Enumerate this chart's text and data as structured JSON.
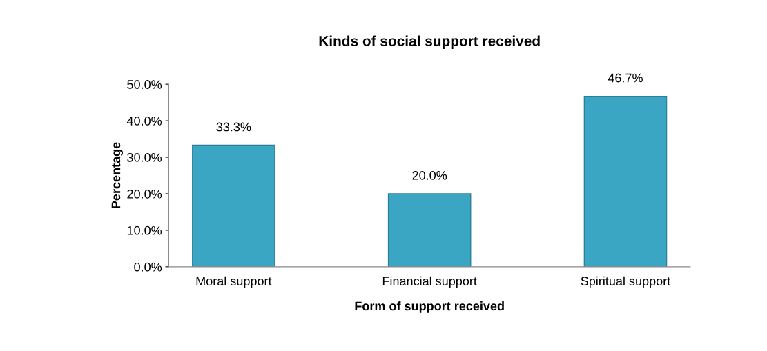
{
  "chart_data": {
    "type": "bar",
    "title": "Kinds of social support received",
    "xlabel": "Form of support received",
    "ylabel": "Percentage",
    "categories": [
      "Moral support",
      "Financial support",
      "Spiritual support"
    ],
    "values": [
      33.3,
      20.0,
      46.7
    ],
    "color": "#3aa6c4",
    "value_labels": [
      "33.3%",
      "20.0%",
      "46.7%"
    ],
    "ylim": [
      0,
      50
    ],
    "yticks": [
      {
        "value": 0,
        "label": "0.0%"
      },
      {
        "value": 10,
        "label": "10.0%"
      },
      {
        "value": 20,
        "label": "20.0%"
      },
      {
        "value": 30,
        "label": "30.0%"
      },
      {
        "value": 40,
        "label": "40.0%"
      },
      {
        "value": 50,
        "label": "50.0%"
      }
    ],
    "grid": false,
    "legend": false
  }
}
